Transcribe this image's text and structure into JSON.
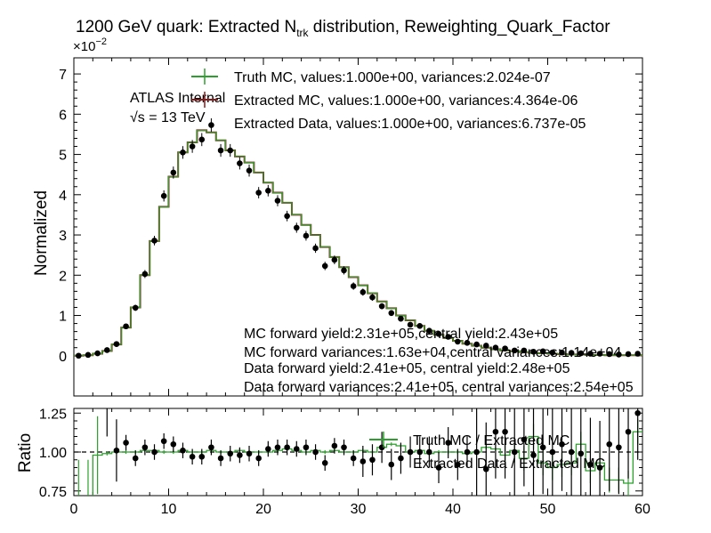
{
  "title_main": "1200 GeV quark: Extracted N",
  "title_sub": "trk",
  "title_rest": " distribution, Reweighting_Quark_Factor",
  "exponent_base": "×10",
  "exponent_power": "−2",
  "atlas_label": "ATLAS Internal",
  "energy_label": "√s = 13 TeV",
  "colors": {
    "truth": "#2ca02c",
    "extracted_mc": "#8b1a1a",
    "data": "#000000",
    "band": "#ff0000"
  },
  "chart_data": [
    {
      "type": "line",
      "ylabel": "Normalized",
      "ylim": [
        -1,
        7.4
      ],
      "xlim": [
        0,
        60
      ],
      "y_scale_note": "values in units of 1e-2",
      "yticks": [
        "0",
        "1",
        "2",
        "3",
        "4",
        "5",
        "6",
        "7"
      ],
      "legend": [
        "Truth MC, values:1.000e+00, variances:2.024e-07",
        "Extracted MC, values:1.000e+00, variances:4.364e-06",
        "Extracted Data, values:1.000e+00, variances:6.737e-05"
      ],
      "annotations": [
        "MC forward yield:2.31e+05,central yield:2.43e+05",
        "MC forward variances:1.63e+04,central variances:1.14e+04",
        "Data forward yield:2.41e+05, central yield:2.48e+05",
        "Data forward variances:2.41e+05, central variances:2.54e+05"
      ],
      "bin_edges_start": 0,
      "bin_width": 1,
      "series": [
        {
          "name": "Truth MC",
          "values": [
            0.0,
            0.01,
            0.05,
            0.12,
            0.28,
            0.7,
            1.2,
            2.0,
            2.85,
            3.7,
            4.45,
            5.05,
            5.3,
            5.6,
            5.55,
            5.35,
            5.1,
            4.95,
            4.8,
            4.55,
            4.3,
            4.05,
            3.8,
            3.5,
            3.25,
            3.0,
            2.7,
            2.45,
            2.2,
            1.95,
            1.75,
            1.55,
            1.35,
            1.18,
            1.0,
            0.88,
            0.74,
            0.62,
            0.52,
            0.44,
            0.37,
            0.3,
            0.25,
            0.2,
            0.16,
            0.13,
            0.11,
            0.09,
            0.07,
            0.06,
            0.05,
            0.04,
            0.03,
            0.03,
            0.02,
            0.02,
            0.01,
            0.01,
            0.01,
            0.01
          ]
        },
        {
          "name": "Extracted MC",
          "values": [
            0.0,
            0.01,
            0.05,
            0.12,
            0.28,
            0.7,
            1.2,
            2.0,
            2.85,
            3.7,
            4.45,
            5.05,
            5.3,
            5.6,
            5.55,
            5.35,
            5.1,
            4.95,
            4.8,
            4.55,
            4.3,
            4.05,
            3.8,
            3.5,
            3.25,
            3.0,
            2.7,
            2.45,
            2.2,
            1.95,
            1.75,
            1.55,
            1.35,
            1.18,
            1.0,
            0.88,
            0.74,
            0.62,
            0.52,
            0.44,
            0.37,
            0.3,
            0.25,
            0.2,
            0.16,
            0.13,
            0.11,
            0.09,
            0.07,
            0.06,
            0.05,
            0.04,
            0.03,
            0.03,
            0.02,
            0.02,
            0.01,
            0.01,
            0.01,
            0.01
          ]
        },
        {
          "name": "Extracted Data",
          "values": [
            0.0,
            0.02,
            0.06,
            0.14,
            0.29,
            0.73,
            1.19,
            2.03,
            2.86,
            3.97,
            4.55,
            5.05,
            5.2,
            5.37,
            5.73,
            5.1,
            5.1,
            4.78,
            4.6,
            4.05,
            4.1,
            3.85,
            3.47,
            3.18,
            2.98,
            2.67,
            2.23,
            2.38,
            2.12,
            1.73,
            1.58,
            1.45,
            1.23,
            1.06,
            0.92,
            0.77,
            0.74,
            0.62,
            0.54,
            0.47,
            0.35,
            0.32,
            0.28,
            0.25,
            0.2,
            0.18,
            0.13,
            0.13,
            0.1,
            0.11,
            0.08,
            0.08,
            0.07,
            0.06,
            0.05,
            0.05,
            0.04,
            0.03,
            0.04,
            0.05
          ]
        }
      ]
    },
    {
      "type": "line",
      "ylabel": "Ratio",
      "ylim": [
        0.72,
        1.28
      ],
      "xlim": [
        0,
        60
      ],
      "yticks": [
        "0.75",
        "1.00",
        "1.25"
      ],
      "xlabel": "",
      "xticks": [
        "0",
        "10",
        "20",
        "30",
        "40",
        "50",
        "60"
      ],
      "legend": [
        "Truth MC / Extracted MC",
        "Extracted Data / Extracted MC"
      ],
      "series": [
        {
          "name": "Truth MC / Extracted MC",
          "values": [
            0.7,
            0.7,
            0.98,
            0.99,
            1.0,
            1.0,
            1.0,
            1.01,
            1.01,
            1.0,
            1.0,
            1.01,
            1.0,
            1.0,
            1.01,
            1.0,
            1.0,
            1.01,
            1.0,
            1.0,
            1.0,
            1.01,
            1.02,
            1.01,
            1.0,
            1.01,
            1.0,
            1.01,
            1.0,
            1.0,
            1.01,
            1.0,
            1.03,
            1.05,
            1.04,
            1.0,
            1.01,
            0.99,
            1.0,
            1.0,
            1.0,
            0.99,
            1.0,
            1.03,
            1.02,
            0.98,
            1.01,
            0.96,
            1.1,
            0.93,
            0.9,
            0.92,
            0.93,
            1.05,
            0.88,
            0.93,
            0.82,
            0.82,
            0.8,
            1.13
          ]
        },
        {
          "name": "Extracted Data / Extracted MC",
          "values": [
            null,
            null,
            null,
            1.3,
            1.01,
            1.06,
            0.96,
            1.03,
            1.0,
            1.07,
            1.05,
            1.01,
            0.97,
            0.97,
            1.03,
            0.96,
            0.99,
            0.98,
            0.99,
            0.96,
            1.02,
            1.03,
            1.03,
            1.02,
            1.03,
            1.0,
            0.93,
            1.04,
            1.03,
            0.96,
            0.94,
            0.95,
            1.03,
            0.92,
            0.96,
            1.0,
            1.0,
            1.0,
            0.9,
            1.06,
            0.92,
            1.0,
            1.0,
            0.89,
            1.13,
            1.13,
            1.0,
            1.08,
            0.98,
            1.03,
            1.0,
            1.05,
            1.0,
            0.99,
            0.92,
            0.9,
            1.05,
            1.03,
            1.13,
            1.25
          ]
        }
      ]
    }
  ]
}
